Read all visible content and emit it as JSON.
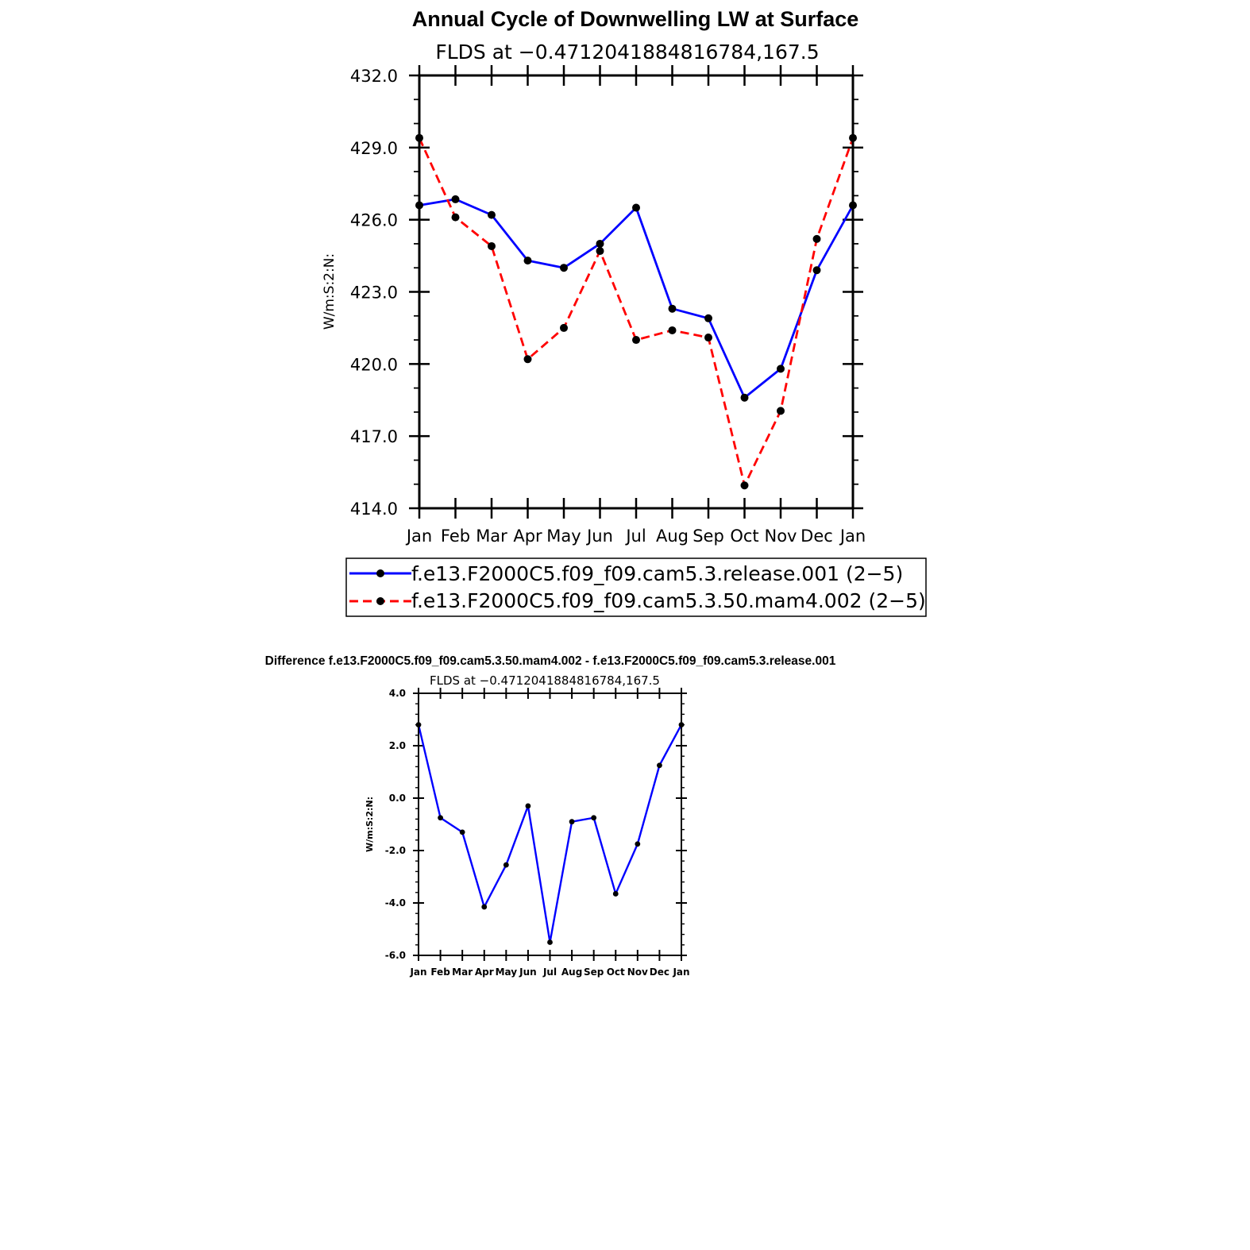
{
  "chart_data": [
    {
      "type": "line",
      "title": "Annual Cycle of Downwelling LW at Surface",
      "subtitle": "FLDS at −0.4712041884816784,167.5",
      "ylabel": "W/m:S:2:N:",
      "xlabel": "",
      "categories": [
        "Jan",
        "Feb",
        "Mar",
        "Apr",
        "May",
        "Jun",
        "Jul",
        "Aug",
        "Sep",
        "Oct",
        "Nov",
        "Dec",
        "Jan"
      ],
      "ylim": [
        414.0,
        432.0
      ],
      "yticks": [
        "414.0",
        "417.0",
        "420.0",
        "423.0",
        "426.0",
        "429.0",
        "432.0"
      ],
      "series": [
        {
          "name": "f.e13.F2000C5.f09_f09.cam5.3.release.001 (2−5)",
          "color": "#0000ff",
          "dash": "solid",
          "values": [
            426.6,
            426.85,
            426.2,
            424.3,
            424.0,
            425.0,
            426.5,
            422.3,
            421.9,
            418.6,
            419.8,
            423.9,
            426.6
          ]
        },
        {
          "name": "f.e13.F2000C5.f09_f09.cam5.3.50.mam4.002 (2−5)",
          "color": "#ff0000",
          "dash": "dashed",
          "values": [
            429.4,
            426.1,
            424.9,
            420.2,
            421.5,
            424.7,
            421.0,
            421.4,
            421.1,
            414.95,
            418.05,
            425.2,
            429.4
          ]
        }
      ],
      "legend": "bottom"
    },
    {
      "type": "line",
      "title": "Difference f.e13.F2000C5.f09_f09.cam5.3.50.mam4.002 - f.e13.F2000C5.f09_f09.cam5.3.release.001",
      "subtitle": "FLDS at −0.4712041884816784,167.5",
      "ylabel": "W/m:S:2:N:",
      "xlabel": "",
      "categories": [
        "Jan",
        "Feb",
        "Mar",
        "Apr",
        "May",
        "Jun",
        "Jul",
        "Aug",
        "Sep",
        "Oct",
        "Nov",
        "Dec",
        "Jan"
      ],
      "ylim": [
        -6.0,
        4.0
      ],
      "yticks": [
        "-6.0",
        "-4.0",
        "-2.0",
        "0.0",
        "2.0",
        "4.0"
      ],
      "series": [
        {
          "color": "#0000ff",
          "dash": "solid",
          "values": [
            2.8,
            -0.75,
            -1.3,
            -4.15,
            -2.55,
            -0.3,
            -5.5,
            -0.9,
            -0.75,
            -3.65,
            -1.75,
            1.25,
            2.8
          ]
        }
      ]
    }
  ]
}
